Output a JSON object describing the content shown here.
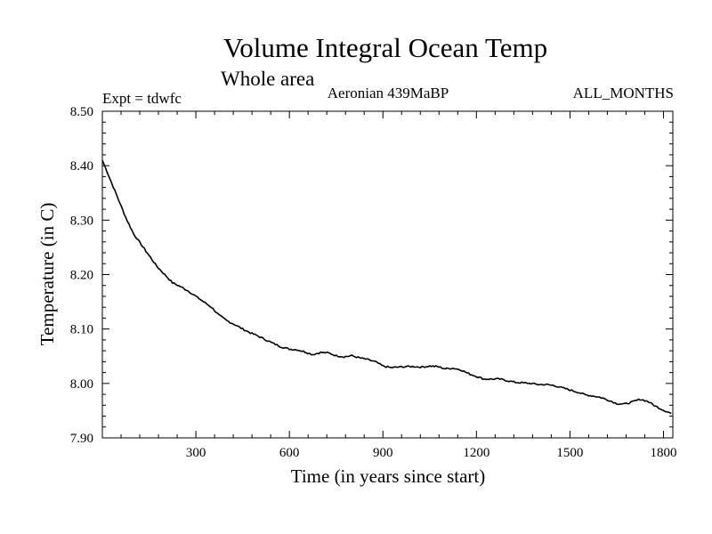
{
  "chart_data": {
    "type": "line",
    "title": "Volume Integral Ocean Temp",
    "subtitle": "Whole area",
    "annotations": {
      "left": "Expt = tdwfc",
      "center": "Aeronian 439MaBP",
      "right": "ALL_MONTHS"
    },
    "xlabel": "Time (in years since start)",
    "ylabel": "Temperature (in C)",
    "xlim": [
      0,
      1830
    ],
    "ylim": [
      7.9,
      8.5
    ],
    "xticks": [
      300,
      600,
      900,
      1200,
      1500,
      1800
    ],
    "xtick_labels": [
      "300",
      "600",
      "900",
      "1200",
      "1500",
      "1800"
    ],
    "yticks": [
      7.9,
      8.0,
      8.1,
      8.2,
      8.3,
      8.4,
      8.5
    ],
    "ytick_labels": [
      "7.90",
      "8.00",
      "8.10",
      "8.20",
      "8.30",
      "8.40",
      "8.50"
    ],
    "series": [
      {
        "name": "Volume integral ocean temperature",
        "color": "#000000",
        "x": [
          0,
          25,
          50,
          75,
          100,
          125,
          150,
          175,
          200,
          225,
          250,
          275,
          300,
          325,
          350,
          375,
          400,
          425,
          450,
          475,
          500,
          525,
          550,
          575,
          600,
          625,
          650,
          675,
          700,
          725,
          750,
          775,
          800,
          825,
          850,
          875,
          900,
          925,
          950,
          975,
          1000,
          1025,
          1050,
          1075,
          1100,
          1125,
          1150,
          1175,
          1200,
          1225,
          1250,
          1275,
          1300,
          1325,
          1350,
          1375,
          1400,
          1425,
          1450,
          1475,
          1500,
          1525,
          1550,
          1575,
          1600,
          1625,
          1650,
          1675,
          1700,
          1725,
          1750,
          1775,
          1800,
          1825
        ],
        "y": [
          8.41,
          8.375,
          8.34,
          8.305,
          8.275,
          8.255,
          8.235,
          8.215,
          8.2,
          8.185,
          8.178,
          8.17,
          8.16,
          8.15,
          8.14,
          8.125,
          8.115,
          8.108,
          8.1,
          8.093,
          8.087,
          8.08,
          8.073,
          8.067,
          8.063,
          8.062,
          8.058,
          8.053,
          8.057,
          8.056,
          8.051,
          8.049,
          8.051,
          8.047,
          8.044,
          8.04,
          8.032,
          8.029,
          8.03,
          8.031,
          8.031,
          8.03,
          8.032,
          8.031,
          8.027,
          8.028,
          8.025,
          8.018,
          8.013,
          8.008,
          8.008,
          8.008,
          8.005,
          8.002,
          8.001,
          8.0,
          7.998,
          7.998,
          7.996,
          7.992,
          7.988,
          7.984,
          7.979,
          7.977,
          7.974,
          7.969,
          7.963,
          7.962,
          7.966,
          7.971,
          7.967,
          7.958,
          7.951,
          7.945
        ]
      }
    ]
  }
}
